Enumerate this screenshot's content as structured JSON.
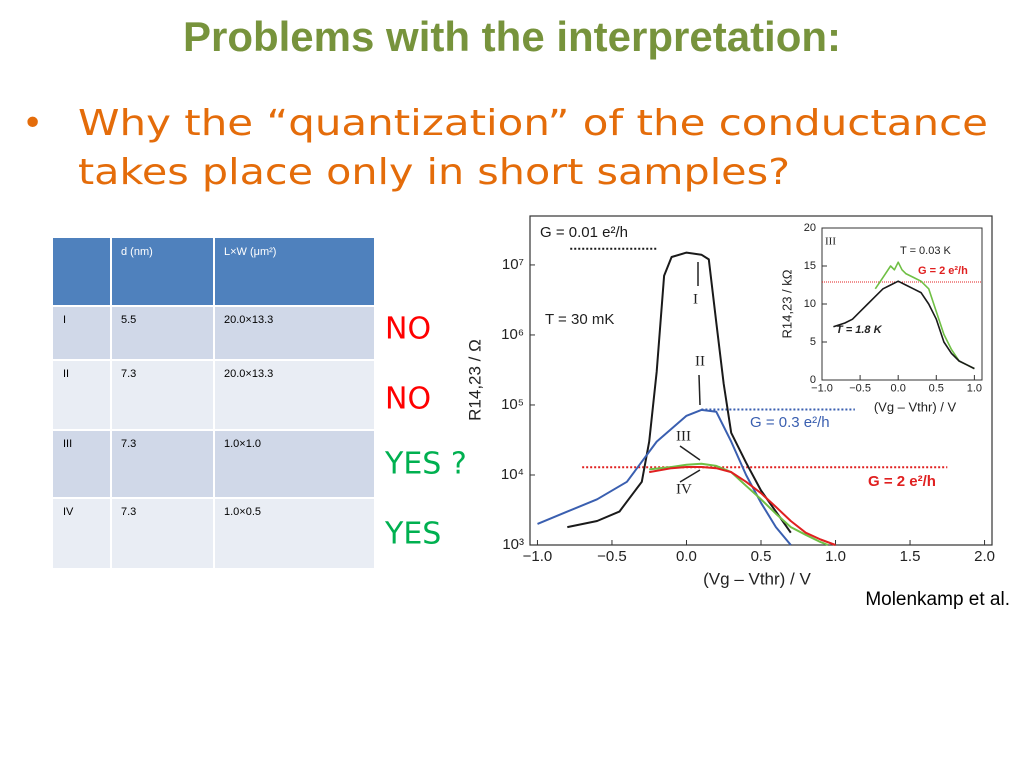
{
  "title": "Problems with the interpretation:",
  "bullet": {
    "marker": "•",
    "lines": [
      "Why the “quantization” of the conductance",
      "takes place only in short samples?"
    ]
  },
  "table": {
    "header": [
      "d (nm)",
      "L×W (μm²)"
    ],
    "rows": [
      [
        "I",
        "5.5",
        "20.0×13.3"
      ],
      [
        "II",
        "7.3",
        "20.0×13.3"
      ],
      [
        "III",
        "7.3",
        "1.0×1.0"
      ],
      [
        "IV",
        "7.3",
        "1.0×0.5"
      ]
    ]
  },
  "answers": [
    "NO",
    "NO",
    "YES ?",
    "YES"
  ],
  "credit": "Molenkamp et al.",
  "chart_data": [
    {
      "type": "line",
      "x_label": "(Vg – Vthr) / V",
      "y_label": "R14,23 / Ω",
      "log_y": true,
      "xlim": [
        -1.05,
        2.05
      ],
      "ylim": [
        1000,
        50000000
      ],
      "xticks": [
        {
          "value": -1,
          "label": "−1.0"
        },
        {
          "value": -0.5,
          "label": "−0.5"
        },
        {
          "value": 0,
          "label": "0.0"
        },
        0.5,
        {
          "value": 1,
          "label": "1.0"
        },
        1.5,
        {
          "value": 2,
          "label": "2.0"
        }
      ],
      "yticks": [
        {
          "value": 1000,
          "label": "10³"
        },
        {
          "value": 10000,
          "label": "10⁴"
        },
        {
          "value": 100000,
          "label": "10⁵"
        },
        {
          "value": 1000000,
          "label": "10⁶"
        },
        {
          "value": 10000000,
          "label": "10⁷"
        }
      ],
      "annotations": [
        "T = 30 mK"
      ],
      "reference_lines": [
        {
          "label": "G = 0.01 e²/h",
          "value": 17000000,
          "x_range": [
            -0.78,
            -0.2
          ],
          "color": "#1a1a1a"
        },
        {
          "label": "G = 0.3 e²/h",
          "value": 86000,
          "x_range": [
            0.1,
            1.13
          ],
          "color": "#3a5fb0"
        },
        {
          "label": "G = 2 e²/h",
          "value": 12900,
          "x_range": [
            -0.7,
            1.75
          ],
          "color": "#e02020"
        }
      ],
      "series": [
        {
          "name": "I",
          "color": "#1a1a1a",
          "x": [
            -0.8,
            -0.6,
            -0.45,
            -0.3,
            -0.25,
            -0.2,
            -0.15,
            -0.1,
            0,
            0.1,
            0.15,
            0.2,
            0.25,
            0.3,
            0.4,
            0.5,
            0.6,
            0.7
          ],
          "values": [
            1800,
            2200,
            3000,
            8000,
            30000,
            300000,
            7000000,
            13000000,
            15000000,
            14000000,
            12000000,
            1500000,
            200000,
            40000,
            15000,
            6000,
            3000,
            1500
          ]
        },
        {
          "name": "II",
          "color": "#3a5fb0",
          "x": [
            -1.0,
            -0.8,
            -0.6,
            -0.4,
            -0.2,
            0,
            0.1,
            0.2,
            0.3,
            0.4,
            0.5,
            0.6,
            0.7
          ],
          "values": [
            2000,
            3000,
            4500,
            8000,
            30000,
            70000,
            85000,
            80000,
            30000,
            10000,
            4000,
            1800,
            1000
          ]
        },
        {
          "name": "III",
          "color": "#6fbf44",
          "x": [
            -0.25,
            -0.1,
            0,
            0.1,
            0.2,
            0.3,
            0.4,
            0.5,
            0.6,
            0.7,
            0.8,
            0.9,
            0.95
          ],
          "values": [
            12000,
            13000,
            14000,
            14500,
            13500,
            11000,
            7000,
            4500,
            2800,
            1800,
            1400,
            1100,
            1000
          ]
        },
        {
          "name": "IV",
          "color": "#e02020",
          "x": [
            -0.25,
            -0.1,
            0,
            0.1,
            0.2,
            0.3,
            0.4,
            0.5,
            0.6,
            0.7,
            0.8,
            0.9,
            1.0
          ],
          "values": [
            11000,
            12500,
            13000,
            13000,
            12500,
            11000,
            8000,
            5500,
            3500,
            2200,
            1500,
            1200,
            1000
          ]
        }
      ]
    },
    {
      "type": "line",
      "x_label": "(Vg – Vthr) / V",
      "y_label": "R14,23 / kΩ",
      "xlim": [
        -1.0,
        1.1
      ],
      "ylim": [
        0,
        20
      ],
      "xticks": [
        {
          "value": -1,
          "label": "−1.0"
        },
        {
          "value": -0.5,
          "label": "−0.5"
        },
        {
          "value": 0,
          "label": "0.0"
        },
        0.5,
        {
          "value": 1,
          "label": "1.0"
        }
      ],
      "yticks": [
        0,
        5,
        10,
        15,
        20
      ],
      "annotations": [
        "III"
      ],
      "reference_lines": [
        {
          "label": "G = 2 e²/h",
          "value": 12.9,
          "x_range": [
            -1.0,
            1.1
          ],
          "color": "#e02020"
        }
      ],
      "series": [
        {
          "name": "T = 0.03 K",
          "color": "#6fbf44",
          "x": [
            -0.3,
            -0.2,
            -0.1,
            -0.05,
            0,
            0.05,
            0.1,
            0.2,
            0.3,
            0.4,
            0.5,
            0.6,
            0.7,
            0.8,
            0.9,
            1.0
          ],
          "values": [
            12,
            13.5,
            15,
            14.5,
            15.5,
            14.5,
            14,
            13.5,
            13,
            12,
            9,
            6,
            4,
            2.5,
            2,
            1.5
          ]
        },
        {
          "name": "T = 1.8 K",
          "color": "#1a1a1a",
          "x": [
            -0.85,
            -0.7,
            -0.6,
            -0.5,
            -0.4,
            -0.3,
            -0.2,
            -0.1,
            0,
            0.1,
            0.2,
            0.3,
            0.4,
            0.5,
            0.6,
            0.7,
            0.8,
            0.9,
            1.0
          ],
          "values": [
            7,
            7.5,
            8,
            9,
            10,
            11,
            12,
            12.5,
            13,
            12.5,
            12,
            11.5,
            10,
            8,
            5,
            3.5,
            2.5,
            2,
            1.5
          ]
        }
      ]
    }
  ]
}
